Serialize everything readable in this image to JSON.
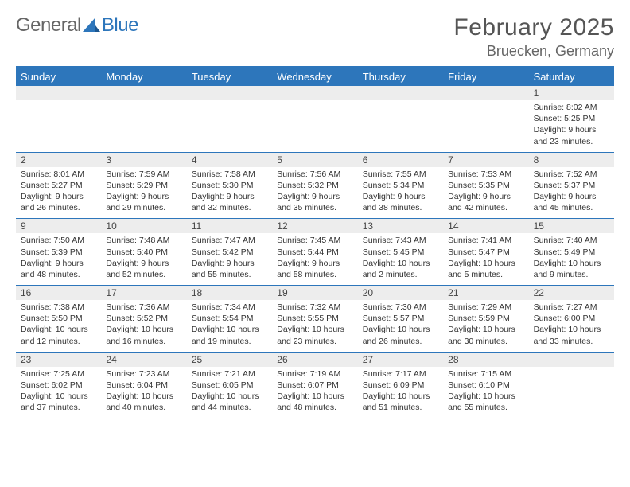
{
  "brand": {
    "part1": "General",
    "part2": "Blue"
  },
  "title": "February 2025",
  "location": "Bruecken, Germany",
  "colors": {
    "accent": "#2d76bb",
    "rowband": "#ededed",
    "text": "#333333",
    "bg": "#ffffff"
  },
  "days_of_week": [
    "Sunday",
    "Monday",
    "Tuesday",
    "Wednesday",
    "Thursday",
    "Friday",
    "Saturday"
  ],
  "labels": {
    "sunrise": "Sunrise",
    "sunset": "Sunset",
    "daylight": "Daylight"
  },
  "weeks": [
    [
      {
        "n": "",
        "empty": true
      },
      {
        "n": "",
        "empty": true
      },
      {
        "n": "",
        "empty": true
      },
      {
        "n": "",
        "empty": true
      },
      {
        "n": "",
        "empty": true
      },
      {
        "n": "",
        "empty": true
      },
      {
        "n": "1",
        "sunrise": "8:02 AM",
        "sunset": "5:25 PM",
        "daylight": "9 hours and 23 minutes."
      }
    ],
    [
      {
        "n": "2",
        "sunrise": "8:01 AM",
        "sunset": "5:27 PM",
        "daylight": "9 hours and 26 minutes."
      },
      {
        "n": "3",
        "sunrise": "7:59 AM",
        "sunset": "5:29 PM",
        "daylight": "9 hours and 29 minutes."
      },
      {
        "n": "4",
        "sunrise": "7:58 AM",
        "sunset": "5:30 PM",
        "daylight": "9 hours and 32 minutes."
      },
      {
        "n": "5",
        "sunrise": "7:56 AM",
        "sunset": "5:32 PM",
        "daylight": "9 hours and 35 minutes."
      },
      {
        "n": "6",
        "sunrise": "7:55 AM",
        "sunset": "5:34 PM",
        "daylight": "9 hours and 38 minutes."
      },
      {
        "n": "7",
        "sunrise": "7:53 AM",
        "sunset": "5:35 PM",
        "daylight": "9 hours and 42 minutes."
      },
      {
        "n": "8",
        "sunrise": "7:52 AM",
        "sunset": "5:37 PM",
        "daylight": "9 hours and 45 minutes."
      }
    ],
    [
      {
        "n": "9",
        "sunrise": "7:50 AM",
        "sunset": "5:39 PM",
        "daylight": "9 hours and 48 minutes."
      },
      {
        "n": "10",
        "sunrise": "7:48 AM",
        "sunset": "5:40 PM",
        "daylight": "9 hours and 52 minutes."
      },
      {
        "n": "11",
        "sunrise": "7:47 AM",
        "sunset": "5:42 PM",
        "daylight": "9 hours and 55 minutes."
      },
      {
        "n": "12",
        "sunrise": "7:45 AM",
        "sunset": "5:44 PM",
        "daylight": "9 hours and 58 minutes."
      },
      {
        "n": "13",
        "sunrise": "7:43 AM",
        "sunset": "5:45 PM",
        "daylight": "10 hours and 2 minutes."
      },
      {
        "n": "14",
        "sunrise": "7:41 AM",
        "sunset": "5:47 PM",
        "daylight": "10 hours and 5 minutes."
      },
      {
        "n": "15",
        "sunrise": "7:40 AM",
        "sunset": "5:49 PM",
        "daylight": "10 hours and 9 minutes."
      }
    ],
    [
      {
        "n": "16",
        "sunrise": "7:38 AM",
        "sunset": "5:50 PM",
        "daylight": "10 hours and 12 minutes."
      },
      {
        "n": "17",
        "sunrise": "7:36 AM",
        "sunset": "5:52 PM",
        "daylight": "10 hours and 16 minutes."
      },
      {
        "n": "18",
        "sunrise": "7:34 AM",
        "sunset": "5:54 PM",
        "daylight": "10 hours and 19 minutes."
      },
      {
        "n": "19",
        "sunrise": "7:32 AM",
        "sunset": "5:55 PM",
        "daylight": "10 hours and 23 minutes."
      },
      {
        "n": "20",
        "sunrise": "7:30 AM",
        "sunset": "5:57 PM",
        "daylight": "10 hours and 26 minutes."
      },
      {
        "n": "21",
        "sunrise": "7:29 AM",
        "sunset": "5:59 PM",
        "daylight": "10 hours and 30 minutes."
      },
      {
        "n": "22",
        "sunrise": "7:27 AM",
        "sunset": "6:00 PM",
        "daylight": "10 hours and 33 minutes."
      }
    ],
    [
      {
        "n": "23",
        "sunrise": "7:25 AM",
        "sunset": "6:02 PM",
        "daylight": "10 hours and 37 minutes."
      },
      {
        "n": "24",
        "sunrise": "7:23 AM",
        "sunset": "6:04 PM",
        "daylight": "10 hours and 40 minutes."
      },
      {
        "n": "25",
        "sunrise": "7:21 AM",
        "sunset": "6:05 PM",
        "daylight": "10 hours and 44 minutes."
      },
      {
        "n": "26",
        "sunrise": "7:19 AM",
        "sunset": "6:07 PM",
        "daylight": "10 hours and 48 minutes."
      },
      {
        "n": "27",
        "sunrise": "7:17 AM",
        "sunset": "6:09 PM",
        "daylight": "10 hours and 51 minutes."
      },
      {
        "n": "28",
        "sunrise": "7:15 AM",
        "sunset": "6:10 PM",
        "daylight": "10 hours and 55 minutes."
      },
      {
        "n": "",
        "empty": true
      }
    ]
  ]
}
